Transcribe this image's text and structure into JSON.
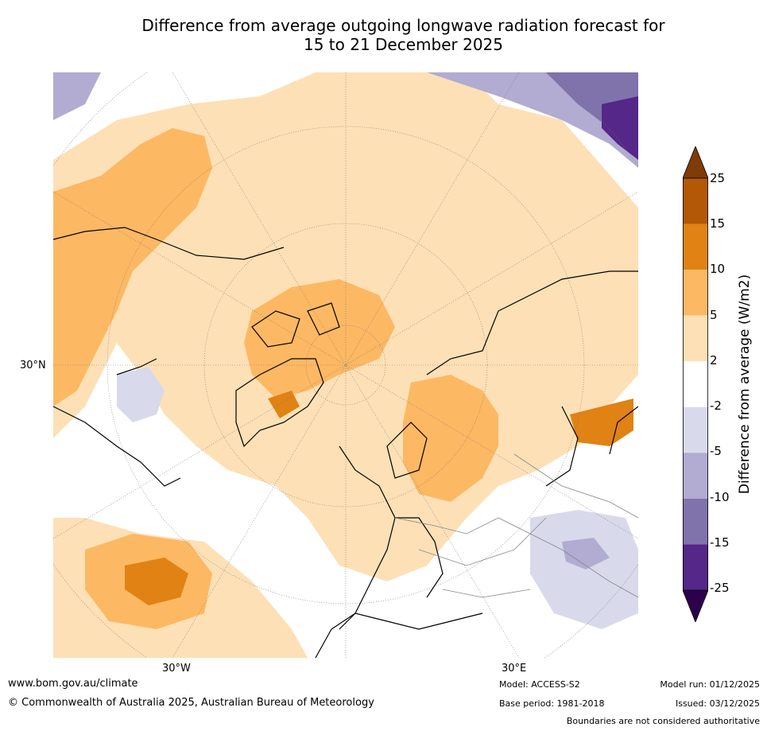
{
  "title": {
    "line1": "Difference from average outgoing longwave radiation forecast for",
    "line2": "15 to 21 December 2025"
  },
  "map": {
    "projection": "north-polar-stereographic",
    "lat_label": "30°N",
    "lon_labels": [
      "30°W",
      "30°E"
    ]
  },
  "colorbar": {
    "title": "Difference from average (W/m2)",
    "levels": [
      "25",
      "15",
      "10",
      "5",
      "2",
      "-2",
      "-5",
      "-10",
      "-15",
      "-25"
    ],
    "colors": [
      "#7f3b08",
      "#b35806",
      "#e08214",
      "#fdb863",
      "#fee0b6",
      "#ffffff",
      "#d8daeb",
      "#b2abd2",
      "#8073ac",
      "#542788",
      "#2d004b"
    ]
  },
  "footer": {
    "website": "www.bom.gov.au/climate",
    "copyright": "© Commonwealth of Australia 2025, Australian Bureau of Meteorology",
    "model": "Model: ACCESS-S2",
    "base_period": "Base period: 1981-2018",
    "model_run": "Model run: 01/12/2025",
    "issued": "Issued: 03/12/2025",
    "disclaimer": "Boundaries are not considered authoritative"
  }
}
